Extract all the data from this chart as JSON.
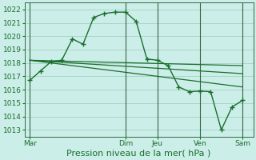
{
  "background_color": "#cceee8",
  "grid_color": "#99ccbb",
  "line_color": "#1a6e2e",
  "marker_color": "#1a6e2e",
  "xlabel": "Pression niveau de la mer( hPa )",
  "ylim": [
    1012.5,
    1022.5
  ],
  "yticks": [
    1013,
    1014,
    1015,
    1016,
    1017,
    1018,
    1019,
    1020,
    1021,
    1022
  ],
  "xtick_labels": [
    "Mar",
    "Dim",
    "Jeu",
    "Ven",
    "Sam"
  ],
  "xtick_positions": [
    0,
    9,
    12,
    16,
    20
  ],
  "xlim": [
    -0.5,
    21
  ],
  "series1_x": [
    0,
    1,
    2,
    3,
    4,
    5,
    6,
    7,
    8,
    9,
    10,
    11,
    12,
    13,
    14,
    15,
    16,
    17,
    18,
    19,
    20
  ],
  "series1_y": [
    1016.7,
    1017.4,
    1018.1,
    1018.2,
    1019.8,
    1019.4,
    1021.4,
    1021.7,
    1021.8,
    1021.8,
    1021.1,
    1018.3,
    1018.2,
    1017.8,
    1016.2,
    1015.85,
    1015.9,
    1015.85,
    1013.0,
    1014.7,
    1015.2
  ],
  "series2_x": [
    0,
    20
  ],
  "series2_y": [
    1018.2,
    1017.8
  ],
  "series3_x": [
    0,
    20
  ],
  "series3_y": [
    1018.2,
    1017.2
  ],
  "series4_x": [
    0,
    20
  ],
  "series4_y": [
    1018.2,
    1016.2
  ],
  "vlines_x": [
    0,
    9,
    12,
    16,
    20
  ],
  "xlabel_fontsize": 8,
  "tick_fontsize": 6.5,
  "figsize": [
    3.2,
    2.0
  ],
  "dpi": 100
}
